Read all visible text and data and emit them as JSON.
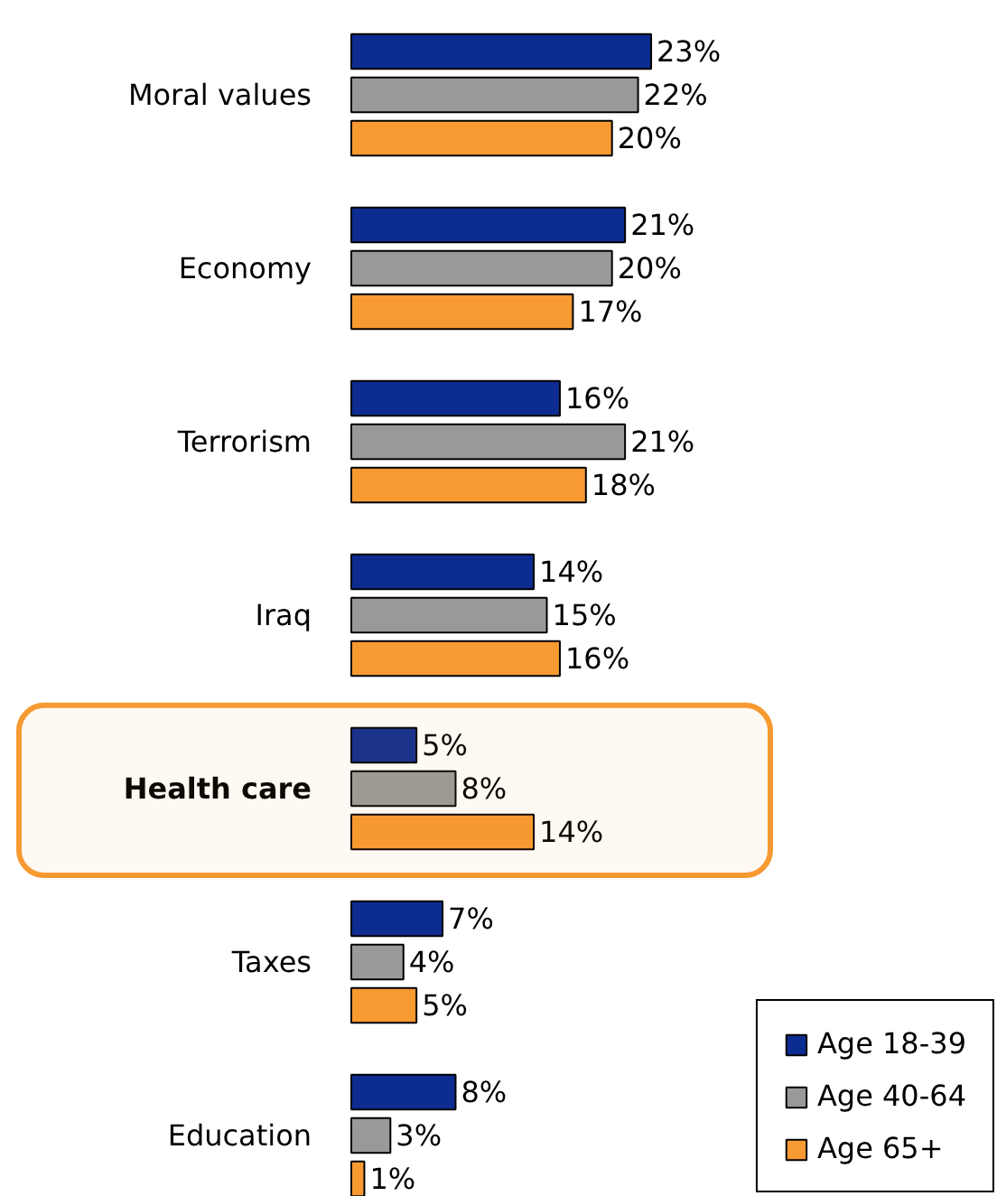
{
  "chart_data": {
    "type": "bar",
    "orientation": "horizontal",
    "categories": [
      "Moral values",
      "Economy",
      "Terrorism",
      "Iraq",
      "Health care",
      "Taxes",
      "Education"
    ],
    "series": [
      {
        "name": "Age 18-39",
        "color": "#0d2c91",
        "values": [
          23,
          21,
          16,
          14,
          5,
          7,
          8
        ],
        "value_labels": [
          "23%",
          "21%",
          "16%",
          "14%",
          "5%",
          "7%",
          "8%"
        ]
      },
      {
        "name": "Age 40-64",
        "color": "#999999",
        "values": [
          22,
          20,
          21,
          15,
          8,
          4,
          3
        ],
        "value_labels": [
          "22%",
          "20%",
          "21%",
          "15%",
          "8%",
          "4%",
          "3%"
        ]
      },
      {
        "name": "Age 65+",
        "color": "#f79a31",
        "values": [
          20,
          17,
          18,
          16,
          14,
          5,
          1
        ],
        "value_labels": [
          "20%",
          "17%",
          "18%",
          "16%",
          "14%",
          "5%",
          "1%"
        ]
      }
    ],
    "bands": [
      {
        "axis": "y",
        "from": "Health care",
        "to": "Health care",
        "color": "#f79a31"
      }
    ],
    "legend": "bottom right",
    "grid": false
  }
}
